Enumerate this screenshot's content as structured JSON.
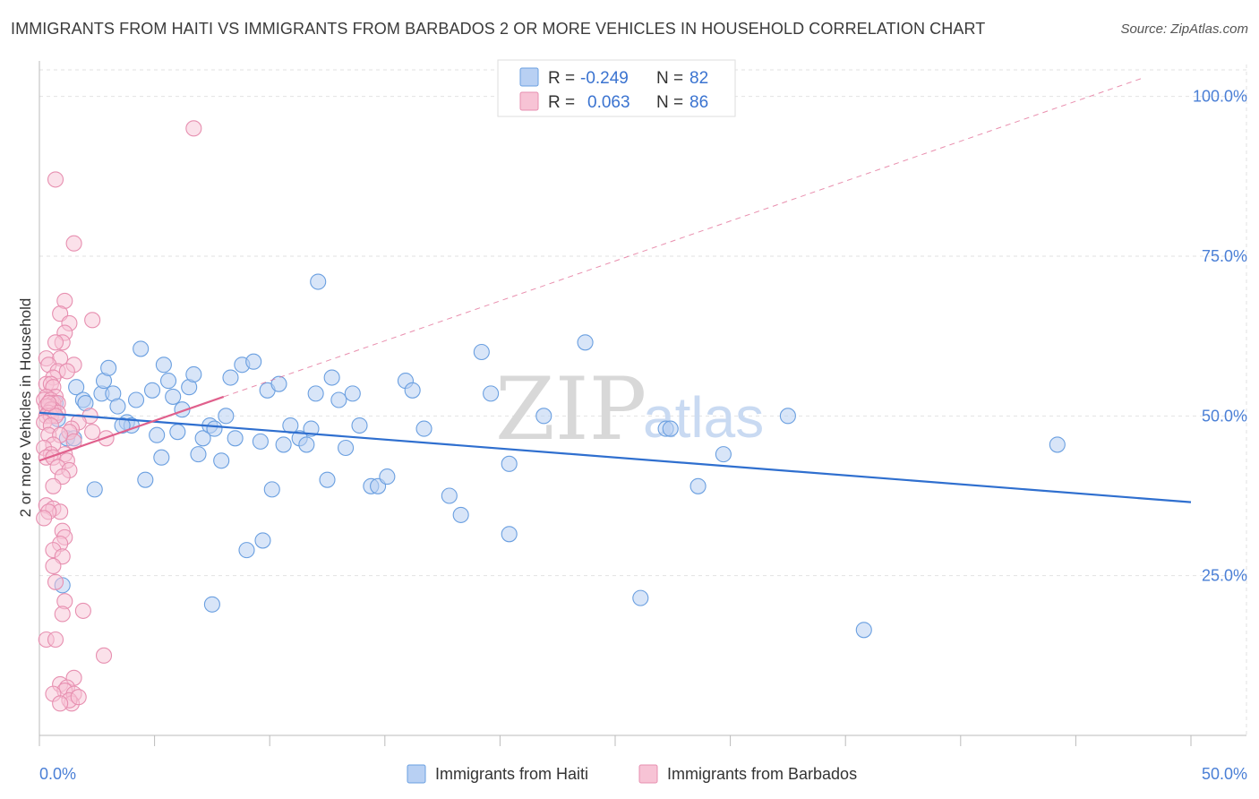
{
  "title": "IMMIGRANTS FROM HAITI VS IMMIGRANTS FROM BARBADOS 2 OR MORE VEHICLES IN HOUSEHOLD CORRELATION CHART",
  "source": "Source: ZipAtlas.com",
  "watermark": {
    "zip": "ZIP",
    "atlas": "atlas"
  },
  "colors": {
    "haiti": "#6a9fe0",
    "haiti_fill": "#b8d0f3",
    "barbados": "#e78fb0",
    "barbados_fill": "#f7c3d5",
    "haiti_line": "#2f6fcf",
    "barbados_line": "#e0608c",
    "tick": "#4a7fd6"
  },
  "legend": {
    "r_label": "R =",
    "n_label": "N =",
    "haiti": {
      "r": "-0.249",
      "n": "82"
    },
    "barbados": {
      "r": "0.063",
      "n": "86"
    }
  },
  "chart_data": {
    "type": "scatter",
    "title": "IMMIGRANTS FROM HAITI VS IMMIGRANTS FROM BARBADOS 2 OR MORE VEHICLES IN HOUSEHOLD CORRELATION CHART",
    "xlabel": "",
    "ylabel": "2 or more Vehicles in Household",
    "xlim": [
      0,
      50
    ],
    "ylim": [
      0,
      105
    ],
    "x_tick_labels": [
      "0.0%",
      "50.0%"
    ],
    "y_ticks": [
      25,
      50,
      75,
      100
    ],
    "y_tick_labels": [
      "25.0%",
      "50.0%",
      "75.0%",
      "100.0%"
    ],
    "grid": true,
    "legend_position": "top-center",
    "series": [
      {
        "name": "Immigrants from Haiti",
        "points": [
          [
            0.8,
            49.5
          ],
          [
            1.2,
            46.5
          ],
          [
            1.6,
            54.5
          ],
          [
            1.9,
            52.5
          ],
          [
            2.4,
            38.5
          ],
          [
            2.7,
            53.5
          ],
          [
            2.8,
            55.5
          ],
          [
            3.0,
            57.5
          ],
          [
            3.2,
            53.5
          ],
          [
            3.4,
            51.5
          ],
          [
            3.8,
            49
          ],
          [
            4.0,
            48.5
          ],
          [
            4.2,
            52.5
          ],
          [
            4.4,
            60.5
          ],
          [
            4.6,
            40
          ],
          [
            4.9,
            54
          ],
          [
            5.1,
            47
          ],
          [
            5.3,
            43.5
          ],
          [
            5.4,
            58
          ],
          [
            5.6,
            55.5
          ],
          [
            6.0,
            47.5
          ],
          [
            6.2,
            51
          ],
          [
            6.5,
            54.5
          ],
          [
            6.7,
            56.5
          ],
          [
            6.9,
            44
          ],
          [
            7.1,
            46.5
          ],
          [
            7.4,
            48.5
          ],
          [
            7.6,
            48
          ],
          [
            7.9,
            43
          ],
          [
            8.1,
            50
          ],
          [
            8.3,
            56
          ],
          [
            8.5,
            46.5
          ],
          [
            8.8,
            58
          ],
          [
            9.0,
            29
          ],
          [
            9.3,
            58.5
          ],
          [
            9.7,
            30.5
          ],
          [
            9.9,
            54
          ],
          [
            10.1,
            38.5
          ],
          [
            10.4,
            55
          ],
          [
            10.6,
            45.5
          ],
          [
            10.9,
            48.5
          ],
          [
            11.3,
            46.5
          ],
          [
            11.6,
            45.5
          ],
          [
            11.8,
            48
          ],
          [
            12.0,
            53.5
          ],
          [
            12.1,
            71
          ],
          [
            12.5,
            40
          ],
          [
            12.7,
            56
          ],
          [
            13.0,
            52.5
          ],
          [
            13.3,
            45
          ],
          [
            13.6,
            53.5
          ],
          [
            13.9,
            48.5
          ],
          [
            14.4,
            39
          ],
          [
            14.7,
            39
          ],
          [
            15.1,
            40.5
          ],
          [
            15.9,
            55.5
          ],
          [
            16.2,
            54
          ],
          [
            16.7,
            48
          ],
          [
            17.8,
            37.5
          ],
          [
            18.3,
            34.5
          ],
          [
            19.2,
            60
          ],
          [
            19.6,
            53.5
          ],
          [
            20.4,
            31.5
          ],
          [
            20.4,
            42.5
          ],
          [
            21.9,
            50
          ],
          [
            23.7,
            61.5
          ],
          [
            26.1,
            21.5
          ],
          [
            27.2,
            48
          ],
          [
            27.4,
            48
          ],
          [
            28.6,
            39
          ],
          [
            29.7,
            44
          ],
          [
            32.5,
            50
          ],
          [
            35.8,
            16.5
          ],
          [
            44.2,
            45.5
          ],
          [
            1.0,
            23.5
          ],
          [
            7.5,
            20.5
          ],
          [
            0.7,
            52
          ],
          [
            1.5,
            46.5
          ],
          [
            3.6,
            48.5
          ],
          [
            2.0,
            52
          ],
          [
            5.8,
            53
          ],
          [
            9.6,
            46
          ]
        ]
      },
      {
        "name": "Immigrants from Barbados",
        "points": [
          [
            6.7,
            95
          ],
          [
            0.7,
            87
          ],
          [
            1.5,
            77
          ],
          [
            1.1,
            68
          ],
          [
            0.9,
            66
          ],
          [
            2.3,
            65
          ],
          [
            1.3,
            64.5
          ],
          [
            1.1,
            63
          ],
          [
            1.0,
            61.5
          ],
          [
            0.7,
            61.5
          ],
          [
            0.3,
            59
          ],
          [
            0.9,
            59
          ],
          [
            0.4,
            58
          ],
          [
            1.5,
            58
          ],
          [
            0.8,
            57
          ],
          [
            1.2,
            57
          ],
          [
            0.6,
            56
          ],
          [
            0.3,
            55
          ],
          [
            0.5,
            55
          ],
          [
            0.6,
            54.5
          ],
          [
            0.7,
            53
          ],
          [
            0.3,
            53
          ],
          [
            0.2,
            52.5
          ],
          [
            0.5,
            52.5
          ],
          [
            0.6,
            52
          ],
          [
            0.8,
            52
          ],
          [
            0.4,
            51.5
          ],
          [
            0.3,
            51.5
          ],
          [
            0.6,
            51
          ],
          [
            0.5,
            51
          ],
          [
            0.4,
            50.5
          ],
          [
            0.3,
            50
          ],
          [
            0.5,
            50
          ],
          [
            0.8,
            50.5
          ],
          [
            0.7,
            50
          ],
          [
            2.2,
            50
          ],
          [
            1.7,
            49
          ],
          [
            0.2,
            49
          ],
          [
            0.5,
            48.5
          ],
          [
            1.4,
            48
          ],
          [
            2.3,
            47.5
          ],
          [
            1.3,
            47.5
          ],
          [
            0.4,
            47
          ],
          [
            0.9,
            47
          ],
          [
            2.9,
            46.5
          ],
          [
            1.5,
            46
          ],
          [
            0.6,
            45.5
          ],
          [
            0.2,
            45
          ],
          [
            0.5,
            44
          ],
          [
            1.1,
            44
          ],
          [
            0.3,
            43.5
          ],
          [
            0.6,
            43.5
          ],
          [
            1.2,
            43
          ],
          [
            0.8,
            42
          ],
          [
            1.3,
            41.5
          ],
          [
            1.0,
            40.5
          ],
          [
            0.6,
            39
          ],
          [
            0.3,
            36
          ],
          [
            0.6,
            35.5
          ],
          [
            0.9,
            35
          ],
          [
            0.4,
            35
          ],
          [
            0.2,
            34
          ],
          [
            1.0,
            32
          ],
          [
            1.1,
            31
          ],
          [
            0.9,
            30
          ],
          [
            0.6,
            29
          ],
          [
            1.0,
            28
          ],
          [
            0.6,
            26.5
          ],
          [
            0.7,
            24
          ],
          [
            1.1,
            21
          ],
          [
            1.9,
            19.5
          ],
          [
            1.0,
            19
          ],
          [
            0.3,
            15
          ],
          [
            0.7,
            15
          ],
          [
            2.8,
            12.5
          ],
          [
            1.5,
            9
          ],
          [
            0.9,
            8
          ],
          [
            1.2,
            7.5
          ],
          [
            1.1,
            7
          ],
          [
            1.5,
            6.5
          ],
          [
            0.6,
            6.5
          ],
          [
            1.4,
            5
          ],
          [
            1.3,
            5.5
          ],
          [
            0.9,
            5
          ],
          [
            1.7,
            6
          ],
          [
            0.4,
            52
          ]
        ]
      }
    ],
    "trend_lines": [
      {
        "series": "Immigrants from Haiti",
        "x": [
          0,
          50
        ],
        "y": [
          50.5,
          36.5
        ],
        "style": "solid"
      },
      {
        "series": "Immigrants from Barbados",
        "x": [
          0,
          8
        ],
        "y": [
          43,
          53
        ],
        "style": "solid"
      },
      {
        "series": "Immigrants from Barbados",
        "x": [
          8,
          48
        ],
        "y": [
          53,
          103
        ],
        "style": "dashed"
      }
    ]
  }
}
